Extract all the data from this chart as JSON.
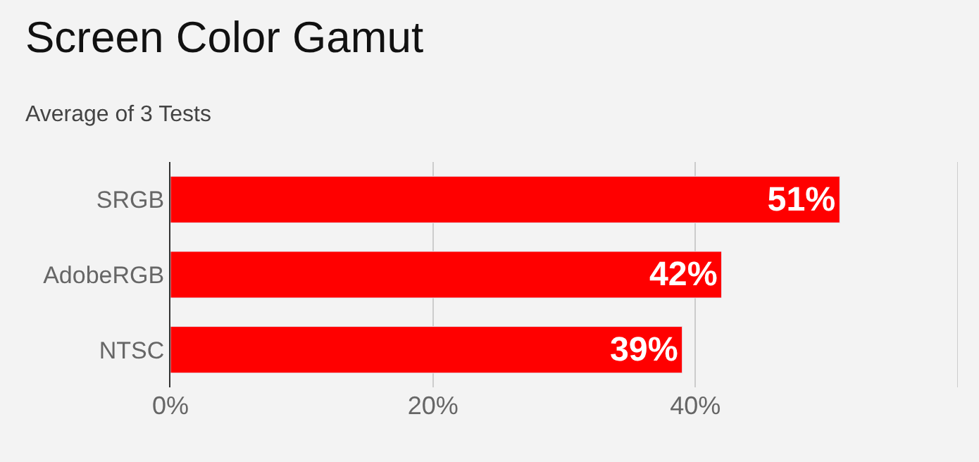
{
  "chart_data": {
    "type": "bar",
    "orientation": "horizontal",
    "title": "Screen Color Gamut",
    "subtitle": "Average of 3 Tests",
    "categories": [
      "SRGB",
      "AdobeRGB",
      "NTSC"
    ],
    "values": [
      51,
      42,
      39
    ],
    "value_labels": [
      "51%",
      "42%",
      "39%"
    ],
    "color": "#ff0000",
    "xlim": [
      0,
      60
    ],
    "xticks": [
      {
        "value": 0,
        "label": "0%"
      },
      {
        "value": 20,
        "label": "20%"
      },
      {
        "value": 40,
        "label": "40%"
      },
      {
        "value": 60,
        "label": null
      }
    ],
    "grid": "x",
    "legend": false
  }
}
